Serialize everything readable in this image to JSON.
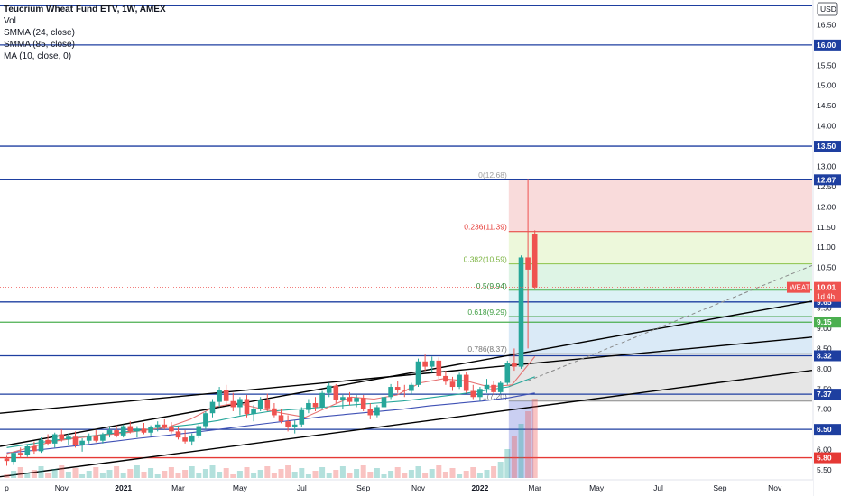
{
  "legend": {
    "title": "Teucrium Wheat Fund ETV, 1W, AMEX",
    "items": [
      "Vol",
      "SMMA (24, close)",
      "SMMA (85, close)",
      "MA (10, close, 0)"
    ]
  },
  "currency_label": "USD",
  "colors": {
    "up": "#26a69a",
    "down": "#ef5350",
    "level_line": "#1e3fa0",
    "red_line": "#e53935",
    "green_line": "#4caf50",
    "smma24": "#26a69a",
    "smma85": "#3f51b5",
    "ma10": "#e57373",
    "fib_top": "#f6c8c8",
    "fib_236": "#e3f4c7",
    "fib_382": "#cdeed7",
    "fib_5": "#c9ebef",
    "fib_618": "#c6dff2",
    "fib_low": "#d9d9d9",
    "box_blue": "#9fa8e8"
  },
  "chart_data": {
    "type": "candlestick",
    "title": "Teucrium Wheat Fund ETV, 1W, AMEX",
    "y_axis": {
      "unit": "USD",
      "range": [
        5.3,
        17.0
      ],
      "ticks": [
        5.5,
        6.0,
        6.5,
        7.0,
        7.5,
        8.0,
        8.5,
        9.0,
        9.5,
        10.0,
        10.5,
        11.0,
        11.5,
        12.0,
        12.5,
        13.0,
        13.5,
        14.0,
        14.5,
        15.0,
        15.5,
        16.0,
        16.5
      ]
    },
    "x_axis": {
      "ticks": [
        {
          "label": "p",
          "week": 0
        },
        {
          "label": "Nov",
          "week": 8
        },
        {
          "label": "2021",
          "week": 17
        },
        {
          "label": "Mar",
          "week": 25
        },
        {
          "label": "May",
          "week": 34
        },
        {
          "label": "Jul",
          "week": 43
        },
        {
          "label": "Sep",
          "week": 52
        },
        {
          "label": "Nov",
          "week": 60
        },
        {
          "label": "2022",
          "week": 69
        },
        {
          "label": "Mar",
          "week": 77
        },
        {
          "label": "May",
          "week": 86
        },
        {
          "label": "Jul",
          "week": 95
        },
        {
          "label": "Sep",
          "week": 104
        },
        {
          "label": "Nov",
          "week": 112
        }
      ]
    },
    "horizontal_levels": [
      {
        "price": 16.97,
        "label": "",
        "color": "level"
      },
      {
        "price": 16.0,
        "label": "16.00",
        "color": "level"
      },
      {
        "price": 13.5,
        "label": "13.50",
        "color": "level"
      },
      {
        "price": 12.67,
        "label": "12.67",
        "color": "level"
      },
      {
        "price": 9.65,
        "label": "9.65",
        "color": "level"
      },
      {
        "price": 9.15,
        "label": "9.15",
        "color": "green"
      },
      {
        "price": 8.32,
        "label": "8.32",
        "color": "level"
      },
      {
        "price": 7.37,
        "label": "7.37",
        "color": "level"
      },
      {
        "price": 6.5,
        "label": "6.50",
        "color": "level"
      },
      {
        "price": 5.8,
        "label": "5.80",
        "color": "red"
      }
    ],
    "current_price": {
      "symbol": "WEAT",
      "price": 10.01,
      "label": "10.01",
      "countdown": "1d 4h"
    },
    "fibonacci": [
      {
        "ratio": "0",
        "price": 12.68,
        "label": "0(12.68)"
      },
      {
        "ratio": "0.236",
        "price": 11.39,
        "label": "0.236(11.39)"
      },
      {
        "ratio": "0.382",
        "price": 10.59,
        "label": "0.382(10.59)"
      },
      {
        "ratio": "0.5",
        "price": 9.94,
        "label": "0.5(9.94)"
      },
      {
        "ratio": "0.618",
        "price": 9.29,
        "label": "0.618(9.29)"
      },
      {
        "ratio": "0.786",
        "price": 8.37,
        "label": "0.786(8.37)"
      },
      {
        "ratio": "1",
        "price": 7.2,
        "label": "1(7.20)"
      }
    ],
    "candles": [
      [
        5.78,
        5.85,
        5.6,
        5.72
      ],
      [
        5.7,
        5.95,
        5.62,
        5.92
      ],
      [
        5.92,
        6.05,
        5.8,
        5.86
      ],
      [
        5.86,
        6.12,
        5.82,
        6.08
      ],
      [
        6.08,
        6.2,
        5.9,
        5.96
      ],
      [
        5.96,
        6.3,
        5.92,
        6.24
      ],
      [
        6.24,
        6.38,
        6.1,
        6.15
      ],
      [
        6.15,
        6.42,
        6.05,
        6.38
      ],
      [
        6.38,
        6.5,
        6.2,
        6.25
      ],
      [
        6.25,
        6.4,
        6.1,
        6.32
      ],
      [
        6.32,
        6.45,
        6.05,
        6.12
      ],
      [
        6.12,
        6.28,
        5.95,
        6.22
      ],
      [
        6.22,
        6.4,
        6.15,
        6.35
      ],
      [
        6.35,
        6.48,
        6.18,
        6.22
      ],
      [
        6.22,
        6.42,
        6.15,
        6.38
      ],
      [
        6.38,
        6.55,
        6.3,
        6.48
      ],
      [
        6.48,
        6.6,
        6.3,
        6.35
      ],
      [
        6.35,
        6.62,
        6.3,
        6.58
      ],
      [
        6.58,
        6.7,
        6.4,
        6.45
      ],
      [
        6.45,
        6.58,
        6.3,
        6.52
      ],
      [
        6.52,
        6.66,
        6.38,
        6.42
      ],
      [
        6.42,
        6.6,
        6.35,
        6.55
      ],
      [
        6.55,
        6.7,
        6.45,
        6.62
      ],
      [
        6.62,
        6.75,
        6.5,
        6.56
      ],
      [
        6.56,
        6.68,
        6.4,
        6.45
      ],
      [
        6.45,
        6.55,
        6.25,
        6.3
      ],
      [
        6.3,
        6.48,
        6.15,
        6.2
      ],
      [
        6.2,
        6.4,
        6.1,
        6.35
      ],
      [
        6.35,
        6.62,
        6.28,
        6.58
      ],
      [
        6.58,
        6.95,
        6.5,
        6.9
      ],
      [
        6.9,
        7.25,
        6.8,
        7.18
      ],
      [
        7.18,
        7.55,
        7.05,
        7.48
      ],
      [
        7.48,
        7.6,
        7.1,
        7.2
      ],
      [
        7.2,
        7.4,
        6.95,
        7.05
      ],
      [
        7.05,
        7.3,
        6.85,
        7.25
      ],
      [
        7.25,
        7.35,
        6.8,
        6.88
      ],
      [
        6.88,
        7.1,
        6.7,
        7.0
      ],
      [
        7.0,
        7.3,
        6.95,
        7.22
      ],
      [
        7.22,
        7.38,
        6.95,
        7.02
      ],
      [
        7.02,
        7.15,
        6.8,
        6.85
      ],
      [
        6.85,
        7.0,
        6.65,
        6.7
      ],
      [
        6.7,
        6.85,
        6.45,
        6.55
      ],
      [
        6.55,
        6.72,
        6.4,
        6.62
      ],
      [
        6.62,
        7.05,
        6.55,
        6.98
      ],
      [
        6.98,
        7.25,
        6.9,
        7.15
      ],
      [
        7.15,
        7.3,
        6.95,
        7.05
      ],
      [
        7.05,
        7.45,
        7.0,
        7.4
      ],
      [
        7.4,
        7.65,
        7.3,
        7.58
      ],
      [
        7.58,
        7.62,
        7.15,
        7.22
      ],
      [
        7.22,
        7.35,
        7.0,
        7.3
      ],
      [
        7.3,
        7.42,
        7.1,
        7.18
      ],
      [
        7.18,
        7.35,
        7.05,
        7.28
      ],
      [
        7.28,
        7.35,
        6.95,
        7.0
      ],
      [
        7.0,
        7.15,
        6.75,
        6.85
      ],
      [
        6.85,
        7.1,
        6.8,
        7.05
      ],
      [
        7.05,
        7.35,
        7.0,
        7.3
      ],
      [
        7.3,
        7.62,
        7.25,
        7.55
      ],
      [
        7.55,
        7.7,
        7.4,
        7.48
      ],
      [
        7.48,
        7.6,
        7.3,
        7.45
      ],
      [
        7.45,
        7.65,
        7.35,
        7.6
      ],
      [
        7.6,
        8.25,
        7.55,
        8.18
      ],
      [
        8.18,
        8.35,
        7.95,
        8.05
      ],
      [
        8.05,
        8.3,
        7.9,
        8.2
      ],
      [
        8.2,
        8.28,
        7.75,
        7.82
      ],
      [
        7.82,
        7.95,
        7.6,
        7.68
      ],
      [
        7.68,
        7.8,
        7.45,
        7.55
      ],
      [
        7.55,
        7.9,
        7.5,
        7.85
      ],
      [
        7.85,
        7.92,
        7.4,
        7.45
      ],
      [
        7.45,
        7.6,
        7.25,
        7.3
      ],
      [
        7.3,
        7.55,
        7.2,
        7.5
      ],
      [
        7.5,
        7.75,
        7.4,
        7.6
      ],
      [
        7.6,
        7.7,
        7.35,
        7.42
      ],
      [
        7.42,
        7.7,
        7.38,
        7.65
      ],
      [
        7.65,
        8.2,
        7.6,
        8.15
      ],
      [
        8.15,
        8.5,
        7.95,
        8.05
      ],
      [
        8.05,
        10.8,
        8.0,
        10.75
      ],
      [
        10.75,
        12.67,
        8.5,
        10.45
      ],
      [
        11.32,
        11.42,
        9.96,
        10.01
      ]
    ],
    "series": [
      {
        "name": "SMMA (24, close)",
        "values": [
          6.05,
          6.15,
          6.25,
          6.32,
          6.4,
          6.48,
          6.55,
          6.62,
          6.72,
          6.85,
          6.95,
          7.0,
          7.05,
          7.1,
          7.15,
          7.2,
          7.28,
          7.36,
          7.45,
          7.55,
          7.8
        ]
      },
      {
        "name": "SMMA (85, close)",
        "values": [
          5.92,
          5.98,
          6.05,
          6.12,
          6.2,
          6.28,
          6.35,
          6.42,
          6.5,
          6.58,
          6.66,
          6.74,
          6.82,
          6.88,
          6.94,
          7.0,
          7.08,
          7.14,
          7.2,
          7.28,
          7.4
        ]
      },
      {
        "name": "MA (10, close, 0)",
        "values": [
          5.9,
          6.05,
          6.2,
          6.28,
          6.35,
          6.4,
          6.48,
          6.55,
          6.75,
          7.05,
          7.15,
          7.02,
          6.9,
          6.8,
          7.05,
          7.3,
          7.25,
          7.35,
          7.65,
          7.75,
          7.7,
          7.55,
          7.6,
          8.3
        ]
      }
    ]
  }
}
